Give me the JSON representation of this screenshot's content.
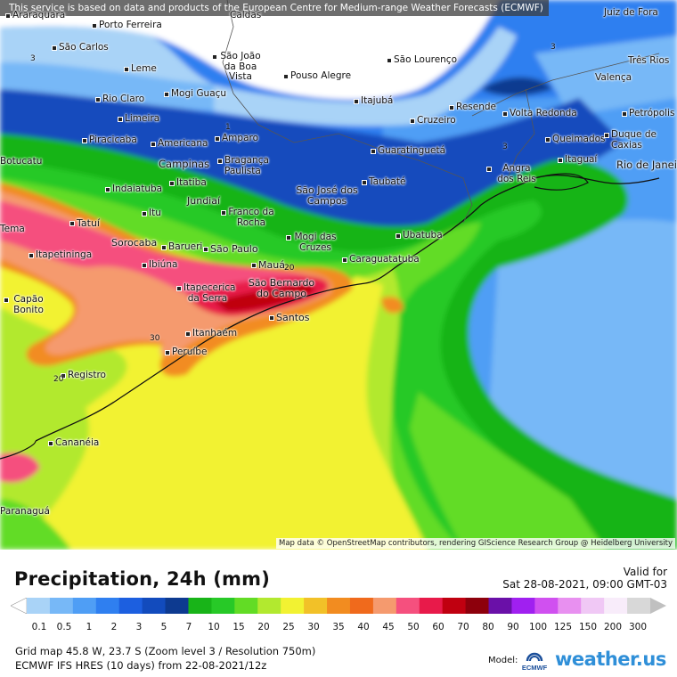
{
  "map": {
    "notice": "This service is based on data and products of the European Centre for Medium-range Weather Forecasts (ECMWF)",
    "credit": "Map data © OpenStreetMap contributors, rendering GIScience Research Group @ Heidelberg University",
    "cities": [
      "Araraquara",
      "Porto Ferreira",
      "Caldas",
      "Juiz de Fora",
      "São Carlos",
      "São João da Boa Vista",
      "São Lourenço",
      "Três Rios",
      "Leme",
      "Pouso Alegre",
      "Valença",
      "Mogi Guaçu",
      "Rio Claro",
      "Itajubá",
      "Resende",
      "Petrópolis",
      "Limeira",
      "Cruzeiro",
      "Volta Redonda",
      "Amparo",
      "Piracicaba",
      "Americana",
      "Queimados",
      "Duque de Caxias",
      "Guaratinguetá",
      "Bragança Paulista",
      "Campinas",
      "Itaguaí",
      "Rio de Janeiro",
      "Sorocaba",
      "Angra dos Reis",
      "Itatiba",
      "Taubaté",
      "Indaiatuba",
      "São José dos Campos",
      "Jundiaí",
      "Itu",
      "Franco da Rocha",
      "Tatuí",
      "Mogi das Cruzes",
      "Ubatuba",
      "Barueri",
      "São Paulo",
      "Itapetininga",
      "Caraguatatuba",
      "Ibiúna",
      "Mauá",
      "Itapecerica da Serra",
      "São Bernardo do Campo",
      "Capão Bonito",
      "Santos",
      "Itanhaém",
      "Peruíbe",
      "Registro",
      "Cananéia",
      "Botucatu",
      "Paranaguá",
      "Tema"
    ],
    "isolines": [
      "3",
      "3",
      "3",
      "1",
      "20",
      "30",
      "20"
    ]
  },
  "legend": {
    "title": "Precipitation, 24h (mm)",
    "valid_for": "Valid for",
    "valid_time": "Sat 28-08-2021, 09:00 GMT-03",
    "ticks": [
      "0.1",
      "0.5",
      "1",
      "2",
      "3",
      "5",
      "7",
      "10",
      "15",
      "20",
      "25",
      "30",
      "35",
      "40",
      "45",
      "50",
      "60",
      "70",
      "80",
      "90",
      "100",
      "125",
      "150",
      "200",
      "300"
    ],
    "colors": [
      "#a9d3f7",
      "#77b8f7",
      "#4f9ef5",
      "#2f7ff0",
      "#1c5fe0",
      "#124bbd",
      "#0d3a90",
      "#18b418",
      "#27c927",
      "#62dc25",
      "#b2e92f",
      "#f2f232",
      "#f2c128",
      "#f28c20",
      "#f06a1c",
      "#f59a6e",
      "#f5507e",
      "#e81a4a",
      "#c00010",
      "#8d000c",
      "#6a10a8",
      "#a020f0",
      "#d050f0",
      "#e890f0",
      "#f0c8f5",
      "#f8ecfa",
      "#d8d8d8"
    ],
    "grid_info": "Grid map 45.8 W, 23.7 S (Zoom level 3 / Resolution 750m)",
    "model_info": "ECMWF IFS HRES (10 days) from 22-08-2021/12z",
    "model_label": "Model:",
    "model_logo_text": "ECMWF",
    "brand": "weather.us"
  }
}
